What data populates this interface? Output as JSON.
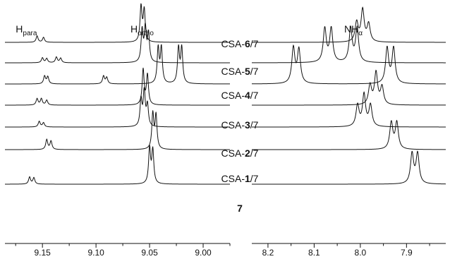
{
  "chart_data": [
    {
      "type": "line",
      "x_axis_ticks": [
        "9.15",
        "9.10",
        "9.05",
        "9.00"
      ],
      "x_axis_tick_values": [
        9.15,
        9.1,
        9.05,
        9.0
      ],
      "xlim": [
        9.185,
        8.975
      ],
      "x_reversed": true,
      "annotations": [
        {
          "base": "H",
          "sub": "para",
          "x": 9.165
        },
        {
          "base": "H",
          "sub": "ortho",
          "x": 9.057
        }
      ],
      "series": [
        {
          "name": "CSA-6/7",
          "peaks": [
            {
              "x": 9.155,
              "h": 0.18
            },
            {
              "x": 9.149,
              "h": 0.14
            },
            {
              "x": 9.058,
              "h": 1.0
            },
            {
              "x": 9.055,
              "h": 0.9
            }
          ]
        },
        {
          "name": "CSA-5/7",
          "peaks": [
            {
              "x": 9.15,
              "h": 0.14
            },
            {
              "x": 9.146,
              "h": 0.12
            },
            {
              "x": 9.137,
              "h": 0.16
            },
            {
              "x": 9.133,
              "h": 0.13
            },
            {
              "x": 9.057,
              "h": 0.9
            },
            {
              "x": 9.054,
              "h": 0.95
            },
            {
              "x": 9.051,
              "h": 0.8
            }
          ]
        },
        {
          "name": "CSA-4/7",
          "peaks": [
            {
              "x": 9.148,
              "h": 0.22
            },
            {
              "x": 9.145,
              "h": 0.2
            },
            {
              "x": 9.093,
              "h": 0.22
            },
            {
              "x": 9.09,
              "h": 0.18
            },
            {
              "x": 9.042,
              "h": 1.0
            },
            {
              "x": 9.039,
              "h": 1.0
            },
            {
              "x": 9.023,
              "h": 1.0
            },
            {
              "x": 9.02,
              "h": 1.0
            }
          ]
        },
        {
          "name": "CSA-3/7",
          "peaks": [
            {
              "x": 9.155,
              "h": 0.18
            },
            {
              "x": 9.151,
              "h": 0.18
            },
            {
              "x": 9.146,
              "h": 0.14
            },
            {
              "x": 9.056,
              "h": 1.0
            },
            {
              "x": 9.052,
              "h": 0.85
            }
          ]
        },
        {
          "name": "CSA-2/7",
          "peaks": [
            {
              "x": 9.153,
              "h": 0.16
            },
            {
              "x": 9.149,
              "h": 0.12
            },
            {
              "x": 9.058,
              "h": 0.75
            },
            {
              "x": 9.055,
              "h": 1.0
            },
            {
              "x": 9.052,
              "h": 0.6
            }
          ]
        },
        {
          "name": "CSA-1/7",
          "peaks": [
            {
              "x": 9.146,
              "h": 0.28
            },
            {
              "x": 9.142,
              "h": 0.24
            },
            {
              "x": 9.047,
              "h": 1.0
            },
            {
              "x": 9.044,
              "h": 0.95
            }
          ]
        },
        {
          "name": "7",
          "peaks": [
            {
              "x": 9.162,
              "h": 0.2
            },
            {
              "x": 9.158,
              "h": 0.18
            },
            {
              "x": 9.05,
              "h": 1.0
            },
            {
              "x": 9.047,
              "h": 0.95
            }
          ]
        }
      ]
    },
    {
      "type": "line",
      "x_axis_ticks": [
        "8.2",
        "8.1",
        "8.0",
        "7.9"
      ],
      "x_axis_tick_values": [
        8.2,
        8.1,
        8.0,
        7.9
      ],
      "xlim": [
        8.235,
        7.815
      ],
      "x_reversed": true,
      "annotations": [
        {
          "base": "NH",
          "sub": "α",
          "x": 8.015
        }
      ],
      "series": [
        {
          "name": "CSA-6/7",
          "peaks": [
            {
              "x": 8.008,
              "h": 0.55
            },
            {
              "x": 7.995,
              "h": 0.9
            },
            {
              "x": 7.982,
              "h": 0.5
            }
          ]
        },
        {
          "name": "CSA-5/7",
          "peaks": [
            {
              "x": 8.077,
              "h": 0.95
            },
            {
              "x": 8.063,
              "h": 0.95
            },
            {
              "x": 8.021,
              "h": 0.95
            },
            {
              "x": 8.007,
              "h": 0.95
            }
          ]
        },
        {
          "name": "CSA-4/7",
          "peaks": [
            {
              "x": 8.145,
              "h": 1.0
            },
            {
              "x": 8.133,
              "h": 0.95
            },
            {
              "x": 7.942,
              "h": 1.0
            },
            {
              "x": 7.928,
              "h": 1.0
            }
          ]
        },
        {
          "name": "CSA-3/7",
          "peaks": [
            {
              "x": 7.979,
              "h": 0.55
            },
            {
              "x": 7.966,
              "h": 0.9
            },
            {
              "x": 7.953,
              "h": 0.5
            }
          ]
        },
        {
          "name": "CSA-2/7",
          "peaks": [
            {
              "x": 8.006,
              "h": 0.6
            },
            {
              "x": 7.992,
              "h": 0.9
            },
            {
              "x": 7.978,
              "h": 0.6
            }
          ]
        },
        {
          "name": "CSA-1/7",
          "peaks": [
            {
              "x": 7.933,
              "h": 0.75
            },
            {
              "x": 7.921,
              "h": 0.75
            }
          ]
        },
        {
          "name": "7",
          "peaks": [
            {
              "x": 7.888,
              "h": 0.85
            },
            {
              "x": 7.876,
              "h": 0.85
            }
          ]
        }
      ]
    }
  ],
  "sample_labels": [
    {
      "pre": "CSA-",
      "num": "6",
      "post": "/7"
    },
    {
      "pre": "CSA-",
      "num": "5",
      "post": "/7"
    },
    {
      "pre": "CSA-",
      "num": "4",
      "post": "/7"
    },
    {
      "pre": "CSA-",
      "num": "3",
      "post": "/7"
    },
    {
      "pre": "CSA-",
      "num": "2",
      "post": "/7"
    },
    {
      "pre": "CSA-",
      "num": "1",
      "post": "/7"
    },
    {
      "pre": "",
      "num": "7",
      "post": ""
    }
  ]
}
